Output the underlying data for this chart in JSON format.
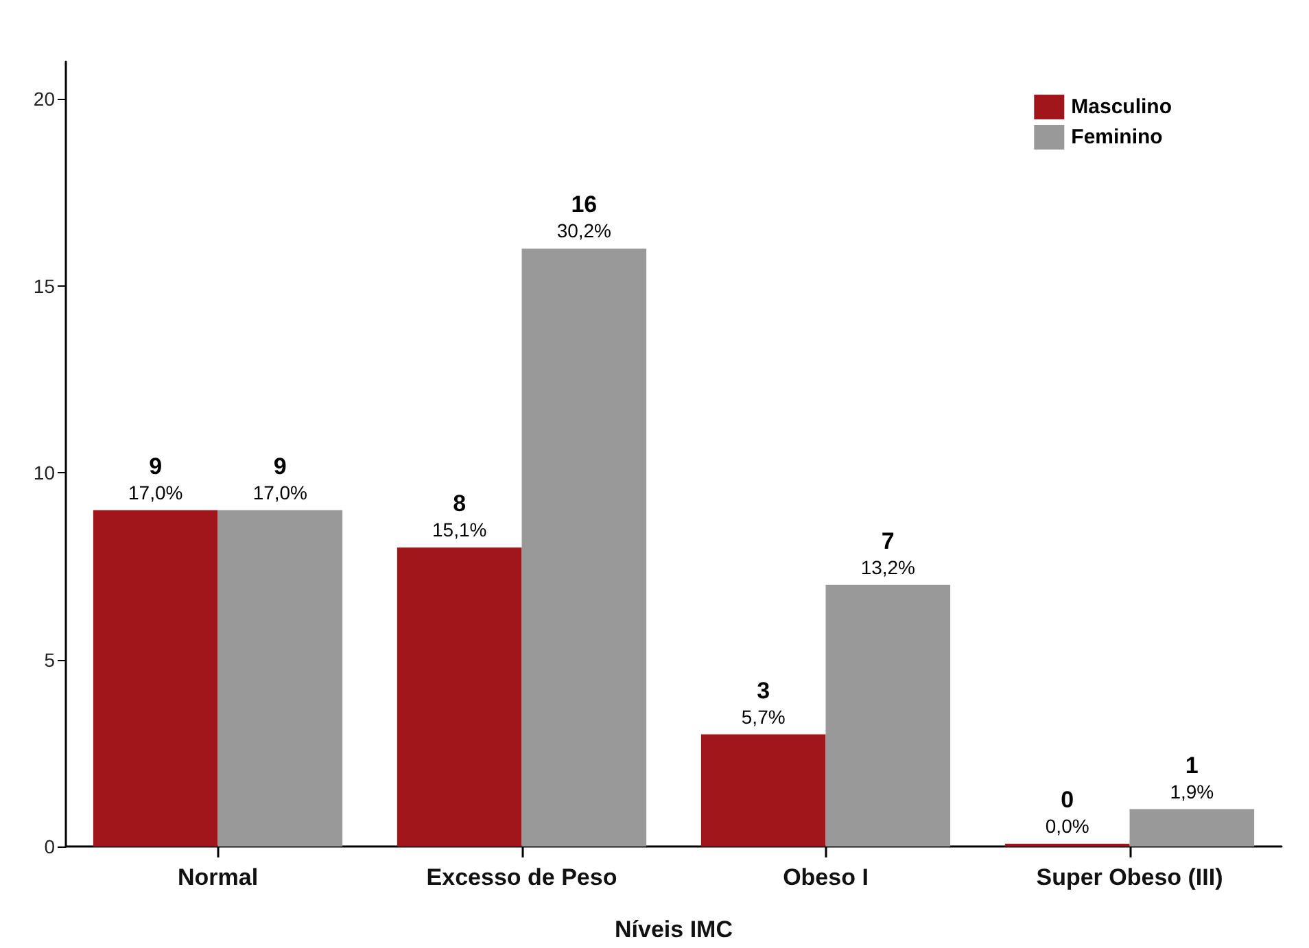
{
  "chart_data": {
    "type": "bar",
    "xlabel": "Níveis IMC",
    "categories": [
      "Normal",
      "Excesso de Peso",
      "Obeso I",
      "Super Obeso (III)"
    ],
    "series": [
      {
        "name": "Masculino",
        "color": "#a0161a",
        "values": [
          9,
          8,
          3,
          0
        ],
        "value_labels": [
          "9\n17,0%",
          "8\n15,1%",
          "3\n5,7%",
          "0\n0,0%"
        ]
      },
      {
        "name": "Feminino",
        "color": "#999999",
        "values": [
          9,
          16,
          7,
          1
        ],
        "value_labels": [
          "9\n17,0%",
          "16\n30,2%",
          "7\n13,2%",
          "1\n1,9%"
        ]
      }
    ],
    "ylim": [
      0,
      21
    ],
    "yticks": [
      0,
      5,
      10,
      15,
      20
    ],
    "grid": false,
    "legend": "top right"
  }
}
